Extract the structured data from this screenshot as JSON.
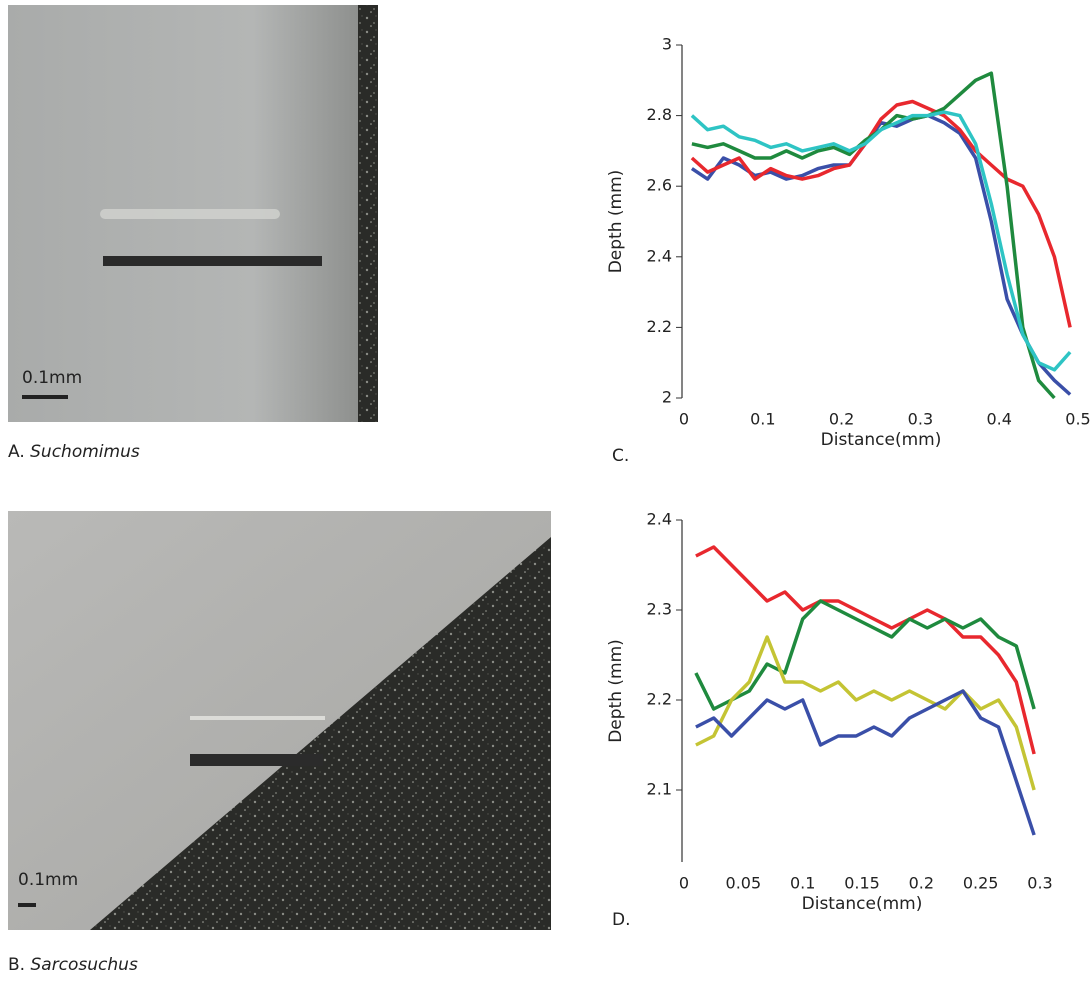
{
  "panels": [
    {
      "label": "A.",
      "taxon": "Suchomimus",
      "scale_label": "0.1mm"
    },
    {
      "label": "B.",
      "taxon": "Sarcosuchus",
      "scale_label": "0.1mm"
    }
  ],
  "chart_data": [
    {
      "type": "line",
      "panel_label": "C.",
      "x_label": "Distance(mm)",
      "y_label": "Depth (mm)",
      "xlim": [
        0,
        0.5
      ],
      "ylim": [
        2,
        3
      ],
      "xticks": [
        0,
        0.1,
        0.2,
        0.3,
        0.4,
        0.5
      ],
      "yticks": [
        2,
        2.2,
        2.4,
        2.6,
        2.8,
        3
      ],
      "x": [
        0.01,
        0.03,
        0.05,
        0.07,
        0.09,
        0.11,
        0.13,
        0.15,
        0.17,
        0.19,
        0.21,
        0.23,
        0.25,
        0.27,
        0.29,
        0.31,
        0.33,
        0.35,
        0.37,
        0.39,
        0.41,
        0.43,
        0.45,
        0.47,
        0.49
      ],
      "series": [
        {
          "color": "#3a4fa8",
          "values": [
            2.65,
            2.62,
            2.68,
            2.66,
            2.63,
            2.64,
            2.62,
            2.63,
            2.65,
            2.66,
            2.66,
            2.72,
            2.78,
            2.77,
            2.79,
            2.8,
            2.78,
            2.75,
            2.68,
            2.5,
            2.28,
            2.18,
            2.1,
            2.05,
            2.01
          ]
        },
        {
          "color": "#e8282e",
          "values": [
            2.68,
            2.64,
            2.66,
            2.68,
            2.62,
            2.65,
            2.63,
            2.62,
            2.63,
            2.65,
            2.66,
            2.72,
            2.79,
            2.83,
            2.84,
            2.82,
            2.8,
            2.76,
            2.7,
            2.66,
            2.62,
            2.6,
            2.52,
            2.4,
            2.2
          ]
        },
        {
          "color": "#1f8a3e",
          "values": [
            2.72,
            2.71,
            2.72,
            2.7,
            2.68,
            2.68,
            2.7,
            2.68,
            2.7,
            2.71,
            2.69,
            2.73,
            2.76,
            2.8,
            2.79,
            2.8,
            2.82,
            2.86,
            2.9,
            2.92,
            2.6,
            2.2,
            2.05,
            2.0,
            null
          ]
        },
        {
          "color": "#2ec4c4",
          "values": [
            2.8,
            2.76,
            2.77,
            2.74,
            2.73,
            2.71,
            2.72,
            2.7,
            2.71,
            2.72,
            2.7,
            2.72,
            2.76,
            2.78,
            2.8,
            2.8,
            2.81,
            2.8,
            2.72,
            2.55,
            2.35,
            2.18,
            2.1,
            2.08,
            2.13
          ]
        }
      ]
    },
    {
      "type": "line",
      "panel_label": "D.",
      "x_label": "Distance(mm)",
      "y_label": "Depth (mm)",
      "xlim": [
        0,
        0.3
      ],
      "ylim": [
        2.02,
        2.4
      ],
      "xticks": [
        0,
        0.05,
        0.1,
        0.15,
        0.2,
        0.25,
        0.3
      ],
      "yticks": [
        2.1,
        2.2,
        2.3,
        2.4
      ],
      "x": [
        0.01,
        0.025,
        0.04,
        0.055,
        0.07,
        0.085,
        0.1,
        0.115,
        0.13,
        0.145,
        0.16,
        0.175,
        0.19,
        0.205,
        0.22,
        0.235,
        0.25,
        0.265,
        0.28,
        0.295
      ],
      "series": [
        {
          "color": "#e8282e",
          "values": [
            2.36,
            2.37,
            2.35,
            2.33,
            2.31,
            2.32,
            2.3,
            2.31,
            2.31,
            2.3,
            2.29,
            2.28,
            2.29,
            2.3,
            2.29,
            2.27,
            2.27,
            2.25,
            2.22,
            2.14
          ]
        },
        {
          "color": "#1f8a3e",
          "values": [
            2.23,
            2.19,
            2.2,
            2.21,
            2.24,
            2.23,
            2.29,
            2.31,
            2.3,
            2.29,
            2.28,
            2.27,
            2.29,
            2.28,
            2.29,
            2.28,
            2.29,
            2.27,
            2.26,
            2.19
          ]
        },
        {
          "color": "#c4c434",
          "values": [
            2.15,
            2.16,
            2.2,
            2.22,
            2.27,
            2.22,
            2.22,
            2.21,
            2.22,
            2.2,
            2.21,
            2.2,
            2.21,
            2.2,
            2.19,
            2.21,
            2.19,
            2.2,
            2.17,
            2.1
          ]
        },
        {
          "color": "#3a4fa8",
          "values": [
            2.17,
            2.18,
            2.16,
            2.18,
            2.2,
            2.19,
            2.2,
            2.15,
            2.16,
            2.16,
            2.17,
            2.16,
            2.18,
            2.19,
            2.2,
            2.21,
            2.18,
            2.17,
            2.11,
            2.05
          ]
        }
      ]
    }
  ]
}
